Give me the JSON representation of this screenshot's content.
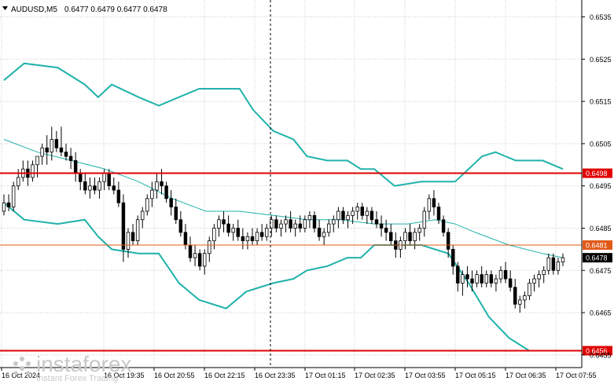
{
  "header": {
    "symbol": "AUDUSD,M5",
    "ohlc": "0.6477 0.6479 0.6477 0.6478"
  },
  "price_axis": {
    "ticks": [
      "0.6535",
      "0.6525",
      "0.6515",
      "0.6505",
      "0.6495",
      "0.6485",
      "0.6475",
      "0.6465",
      "0.6455"
    ]
  },
  "time_axis": {
    "labels": [
      "16 Oct 2024",
      "16 Oct 19:35",
      "16 Oct 20:55",
      "16 Oct 22:15",
      "16 Oct 23:35",
      "17 Oct 01:15",
      "17 Oct 02:35",
      "17 Oct 03:55",
      "17 Oct 05:15",
      "17 Oct 06:35",
      "17 Oct 07:55"
    ]
  },
  "horizontal_levels": [
    {
      "price": 0.6498,
      "label": "0.6498",
      "color": "#e00000"
    },
    {
      "price": 0.6481,
      "label": "0.6481",
      "color": "#e05a1a"
    },
    {
      "price": 0.6456,
      "label": "0.6456",
      "color": "#e00000"
    }
  ],
  "current_price": {
    "label": "0.6478",
    "color": "#000000"
  },
  "watermark": {
    "brand": "instaforex",
    "tagline": "Instant Forex Trading"
  },
  "colors": {
    "candles": "#000000",
    "bands": "#20b2aa",
    "middle_band": "#20b2aa",
    "grid": "#c8c8c8"
  },
  "chart_data": {
    "type": "candlestick",
    "title": "AUDUSD,M5",
    "ylim": [
      0.6452,
      0.6539
    ],
    "indicator": "Bollinger Bands",
    "vertical_marker_label": "16 Oct 23:35",
    "series": [
      {
        "name": "upper_band",
        "points": [
          [
            0,
            0.652
          ],
          [
            6,
            0.6524
          ],
          [
            16,
            0.6523
          ],
          [
            24,
            0.6519
          ],
          [
            28,
            0.6516
          ],
          [
            32,
            0.6519
          ],
          [
            40,
            0.6516
          ],
          [
            46,
            0.6514
          ],
          [
            52,
            0.6516
          ],
          [
            58,
            0.6518
          ],
          [
            64,
            0.6518
          ],
          [
            70,
            0.6518
          ],
          [
            74,
            0.6513
          ],
          [
            80,
            0.6508
          ],
          [
            86,
            0.6506
          ],
          [
            90,
            0.6502
          ],
          [
            96,
            0.6501
          ],
          [
            102,
            0.6501
          ],
          [
            106,
            0.6499
          ],
          [
            110,
            0.6499
          ],
          [
            116,
            0.6495
          ],
          [
            124,
            0.6496
          ],
          [
            134,
            0.6496
          ],
          [
            138,
            0.6499
          ],
          [
            142,
            0.6502
          ],
          [
            146,
            0.6503
          ],
          [
            152,
            0.6501
          ],
          [
            160,
            0.6501
          ],
          [
            166,
            0.6499
          ]
        ]
      },
      {
        "name": "middle_band",
        "points": [
          [
            0,
            0.6506
          ],
          [
            10,
            0.6503
          ],
          [
            20,
            0.6501
          ],
          [
            30,
            0.6499
          ],
          [
            40,
            0.6496
          ],
          [
            50,
            0.6492
          ],
          [
            60,
            0.6489
          ],
          [
            70,
            0.6489
          ],
          [
            80,
            0.6488
          ],
          [
            90,
            0.6487
          ],
          [
            100,
            0.6487
          ],
          [
            110,
            0.6486
          ],
          [
            120,
            0.6486
          ],
          [
            128,
            0.6487
          ],
          [
            134,
            0.6486
          ],
          [
            140,
            0.6484
          ],
          [
            150,
            0.6481
          ],
          [
            160,
            0.6479
          ],
          [
            166,
            0.6478
          ]
        ]
      },
      {
        "name": "lower_band",
        "points": [
          [
            0,
            0.6491
          ],
          [
            6,
            0.6487
          ],
          [
            16,
            0.6486
          ],
          [
            24,
            0.6487
          ],
          [
            28,
            0.6483
          ],
          [
            32,
            0.648
          ],
          [
            40,
            0.6479
          ],
          [
            46,
            0.6479
          ],
          [
            52,
            0.6472
          ],
          [
            58,
            0.6468
          ],
          [
            66,
            0.6466
          ],
          [
            72,
            0.647
          ],
          [
            80,
            0.6472
          ],
          [
            86,
            0.6473
          ],
          [
            90,
            0.6475
          ],
          [
            96,
            0.6476
          ],
          [
            102,
            0.6478
          ],
          [
            106,
            0.6478
          ],
          [
            110,
            0.6481
          ],
          [
            116,
            0.6481
          ],
          [
            124,
            0.6481
          ],
          [
            132,
            0.6479
          ],
          [
            138,
            0.6472
          ],
          [
            144,
            0.6464
          ],
          [
            150,
            0.6459
          ],
          [
            156,
            0.6456
          ],
          [
            166,
            0.6456
          ]
        ]
      }
    ],
    "candles": [
      [
        0.6489,
        0.6493,
        0.6488,
        0.6491
      ],
      [
        0.6491,
        0.6493,
        0.6489,
        0.649
      ],
      [
        0.649,
        0.6496,
        0.6489,
        0.6495
      ],
      [
        0.6495,
        0.6499,
        0.6494,
        0.6497
      ],
      [
        0.6497,
        0.6501,
        0.6496,
        0.6499
      ],
      [
        0.6499,
        0.6501,
        0.6495,
        0.6497
      ],
      [
        0.6497,
        0.6501,
        0.6496,
        0.65
      ],
      [
        0.65,
        0.6502,
        0.6497,
        0.6502
      ],
      [
        0.6502,
        0.6505,
        0.65,
        0.6504
      ],
      [
        0.6504,
        0.6507,
        0.65,
        0.6503
      ],
      [
        0.6503,
        0.6509,
        0.6501,
        0.6506
      ],
      [
        0.6506,
        0.6508,
        0.6503,
        0.6504
      ],
      [
        0.6504,
        0.6509,
        0.6502,
        0.6503
      ],
      [
        0.6503,
        0.6505,
        0.6501,
        0.6502
      ],
      [
        0.6502,
        0.6504,
        0.6499,
        0.6501
      ],
      [
        0.6501,
        0.6503,
        0.6496,
        0.6498
      ],
      [
        0.6498,
        0.6499,
        0.6494,
        0.6496
      ],
      [
        0.6496,
        0.6498,
        0.6493,
        0.6494
      ],
      [
        0.6494,
        0.6497,
        0.6492,
        0.6495
      ],
      [
        0.6495,
        0.6497,
        0.6493,
        0.6494
      ],
      [
        0.6494,
        0.6497,
        0.6492,
        0.6496
      ],
      [
        0.6496,
        0.6499,
        0.6494,
        0.6498
      ],
      [
        0.6498,
        0.6499,
        0.6494,
        0.6495
      ],
      [
        0.6495,
        0.6497,
        0.6493,
        0.6494
      ],
      [
        0.6494,
        0.6496,
        0.649,
        0.6491
      ],
      [
        0.6491,
        0.6493,
        0.6477,
        0.648
      ],
      [
        0.648,
        0.6485,
        0.6478,
        0.6484
      ],
      [
        0.6484,
        0.6486,
        0.6481,
        0.6482
      ],
      [
        0.6482,
        0.6488,
        0.6481,
        0.6487
      ],
      [
        0.6487,
        0.649,
        0.6485,
        0.6489
      ],
      [
        0.6489,
        0.6493,
        0.6488,
        0.6492
      ],
      [
        0.6492,
        0.6496,
        0.649,
        0.6494
      ],
      [
        0.6494,
        0.6498,
        0.6492,
        0.6496
      ],
      [
        0.6496,
        0.6499,
        0.6493,
        0.6495
      ],
      [
        0.6495,
        0.6496,
        0.6491,
        0.6492
      ],
      [
        0.6492,
        0.6494,
        0.6488,
        0.649
      ],
      [
        0.649,
        0.6492,
        0.6486,
        0.6487
      ],
      [
        0.6487,
        0.6489,
        0.6483,
        0.6484
      ],
      [
        0.6484,
        0.6486,
        0.648,
        0.6481
      ],
      [
        0.6481,
        0.6483,
        0.6477,
        0.6478
      ],
      [
        0.6478,
        0.6481,
        0.6476,
        0.6479
      ],
      [
        0.6479,
        0.648,
        0.6475,
        0.6476
      ],
      [
        0.6476,
        0.648,
        0.6474,
        0.6479
      ],
      [
        0.6479,
        0.6483,
        0.6477,
        0.6482
      ],
      [
        0.6482,
        0.6486,
        0.648,
        0.6485
      ],
      [
        0.6485,
        0.6488,
        0.6483,
        0.6487
      ],
      [
        0.6487,
        0.6489,
        0.6484,
        0.6486
      ],
      [
        0.6486,
        0.6488,
        0.6483,
        0.6484
      ],
      [
        0.6484,
        0.6486,
        0.6482,
        0.6485
      ],
      [
        0.6485,
        0.6487,
        0.6482,
        0.6483
      ],
      [
        0.6483,
        0.6485,
        0.648,
        0.6482
      ],
      [
        0.6482,
        0.6484,
        0.648,
        0.6483
      ],
      [
        0.6483,
        0.6485,
        0.6481,
        0.6482
      ],
      [
        0.6482,
        0.6485,
        0.6481,
        0.6484
      ],
      [
        0.6484,
        0.6486,
        0.6482,
        0.6483
      ],
      [
        0.6483,
        0.6486,
        0.6482,
        0.6485
      ],
      [
        0.6485,
        0.6488,
        0.6483,
        0.6487
      ],
      [
        0.6487,
        0.6488,
        0.6484,
        0.6485
      ],
      [
        0.6485,
        0.6487,
        0.6483,
        0.6486
      ],
      [
        0.6486,
        0.6488,
        0.6484,
        0.6487
      ],
      [
        0.6487,
        0.6489,
        0.6484,
        0.6485
      ],
      [
        0.6485,
        0.6487,
        0.6483,
        0.6486
      ],
      [
        0.6486,
        0.6488,
        0.6484,
        0.6485
      ],
      [
        0.6485,
        0.6488,
        0.6484,
        0.6487
      ],
      [
        0.6487,
        0.6489,
        0.6485,
        0.6488
      ],
      [
        0.6488,
        0.6489,
        0.6484,
        0.6485
      ],
      [
        0.6485,
        0.6487,
        0.6482,
        0.6483
      ],
      [
        0.6483,
        0.6485,
        0.6481,
        0.6484
      ],
      [
        0.6484,
        0.6487,
        0.6483,
        0.6486
      ],
      [
        0.6486,
        0.6488,
        0.6484,
        0.6487
      ],
      [
        0.6487,
        0.649,
        0.6485,
        0.6489
      ],
      [
        0.6489,
        0.649,
        0.6486,
        0.6487
      ],
      [
        0.6487,
        0.6489,
        0.6485,
        0.6488
      ],
      [
        0.6488,
        0.649,
        0.6486,
        0.6489
      ],
      [
        0.6489,
        0.6491,
        0.6487,
        0.649
      ],
      [
        0.649,
        0.6491,
        0.6487,
        0.6488
      ],
      [
        0.6488,
        0.649,
        0.6486,
        0.6489
      ],
      [
        0.6489,
        0.649,
        0.6486,
        0.6487
      ],
      [
        0.6487,
        0.6489,
        0.6485,
        0.6486
      ],
      [
        0.6486,
        0.6488,
        0.6483,
        0.6485
      ],
      [
        0.6485,
        0.6487,
        0.6482,
        0.6484
      ],
      [
        0.6484,
        0.6486,
        0.6481,
        0.6482
      ],
      [
        0.6482,
        0.6484,
        0.6478,
        0.648
      ],
      [
        0.648,
        0.6483,
        0.6478,
        0.6482
      ],
      [
        0.6482,
        0.6485,
        0.648,
        0.6484
      ],
      [
        0.6484,
        0.6486,
        0.6481,
        0.6482
      ],
      [
        0.6482,
        0.6485,
        0.648,
        0.6484
      ],
      [
        0.6484,
        0.6486,
        0.6482,
        0.6485
      ],
      [
        0.6485,
        0.649,
        0.6483,
        0.6489
      ],
      [
        0.6489,
        0.6493,
        0.6487,
        0.6492
      ],
      [
        0.6492,
        0.6494,
        0.6488,
        0.649
      ],
      [
        0.649,
        0.6491,
        0.6486,
        0.6487
      ],
      [
        0.6487,
        0.6488,
        0.6483,
        0.6484
      ],
      [
        0.6484,
        0.6485,
        0.6478,
        0.648
      ],
      [
        0.648,
        0.6481,
        0.6474,
        0.6476
      ],
      [
        0.6476,
        0.6477,
        0.647,
        0.6472
      ],
      [
        0.6472,
        0.6475,
        0.6469,
        0.6474
      ],
      [
        0.6474,
        0.6476,
        0.6471,
        0.6473
      ],
      [
        0.6473,
        0.6475,
        0.647,
        0.6472
      ],
      [
        0.6472,
        0.6475,
        0.6471,
        0.6474
      ],
      [
        0.6474,
        0.6476,
        0.6471,
        0.6472
      ],
      [
        0.6472,
        0.6475,
        0.6471,
        0.6474
      ],
      [
        0.6474,
        0.6475,
        0.6471,
        0.6472
      ],
      [
        0.6472,
        0.6474,
        0.647,
        0.6473
      ],
      [
        0.6473,
        0.6476,
        0.6472,
        0.6475
      ],
      [
        0.6475,
        0.6477,
        0.6472,
        0.6473
      ],
      [
        0.6473,
        0.6475,
        0.647,
        0.6471
      ],
      [
        0.6471,
        0.6473,
        0.6466,
        0.6467
      ],
      [
        0.6467,
        0.6469,
        0.6465,
        0.6468
      ],
      [
        0.6468,
        0.647,
        0.6466,
        0.6469
      ],
      [
        0.6469,
        0.6473,
        0.6468,
        0.6472
      ],
      [
        0.6472,
        0.6474,
        0.647,
        0.6473
      ],
      [
        0.6473,
        0.6475,
        0.6471,
        0.6474
      ],
      [
        0.6474,
        0.6476,
        0.6472,
        0.6475
      ],
      [
        0.6475,
        0.6479,
        0.6474,
        0.6478
      ],
      [
        0.6478,
        0.6479,
        0.6474,
        0.6475
      ],
      [
        0.6475,
        0.6478,
        0.6474,
        0.6477
      ],
      [
        0.6477,
        0.6479,
        0.6476,
        0.6478
      ]
    ]
  }
}
